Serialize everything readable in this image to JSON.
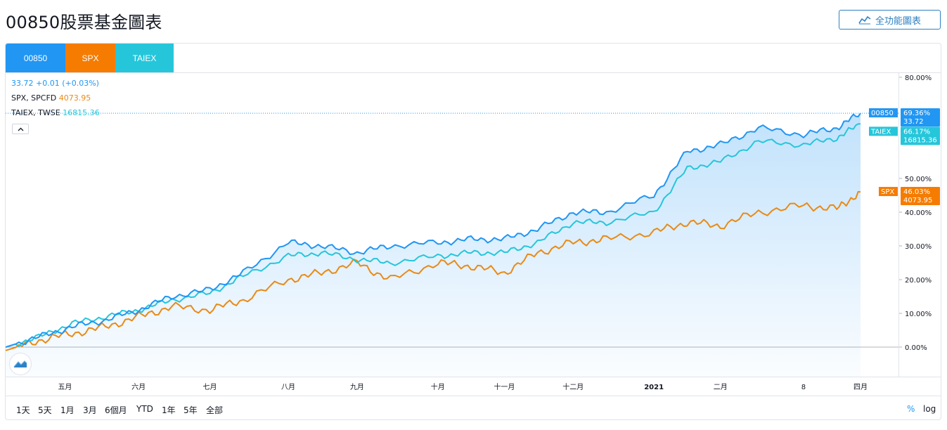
{
  "page": {
    "title": "00850股票基金圖表",
    "full_chart_button": "全功能圖表"
  },
  "tabs": [
    {
      "label": "00850",
      "color": "#2196f3"
    },
    {
      "label": "SPX",
      "color": "#f57c00"
    },
    {
      "label": "TAIEX",
      "color": "#26c6da"
    }
  ],
  "legend": {
    "main": {
      "value": "33.72",
      "change": "+0.01 (+0.03%)"
    },
    "compare": [
      {
        "label": "SPX, SPCFD",
        "value": "4073.95",
        "color": "#e98a16"
      },
      {
        "label": "TAIEX, TWSE",
        "value": "16815.36",
        "color": "#26c6da"
      }
    ],
    "collapse_icon": "chevron-up-icon"
  },
  "price_labels": [
    {
      "symbol": "00850",
      "pct": "69.36%",
      "price": "33.72",
      "color": "#2196f3"
    },
    {
      "symbol": "TAIEX",
      "pct": "66.17%",
      "price": "16815.36",
      "color": "#26c6da"
    },
    {
      "symbol": "SPX",
      "pct": "46.03%",
      "price": "4073.95",
      "color": "#f57c00"
    }
  ],
  "range_buttons": [
    "1天",
    "5天",
    "1月",
    "3月",
    "6個月",
    "YTD",
    "1年",
    "5年",
    "全部"
  ],
  "scale_buttons": {
    "percent": "%",
    "log": "log"
  },
  "chart_data": {
    "type": "line",
    "y_axis": {
      "ticks": [
        "80.00%",
        "50.00%",
        "40.00%",
        "30.00%",
        "20.00%",
        "10.00%",
        "0.00%"
      ],
      "ylim": [
        -10,
        80
      ],
      "unit": "%"
    },
    "x_ticks": [
      "五月",
      "六月",
      "七月",
      "八月",
      "九月",
      "十月",
      "十一月",
      "十二月",
      "2021",
      "二月",
      "8",
      "四月"
    ],
    "x": [
      "2020-04-06",
      "2020-04-20",
      "2020-05-04",
      "2020-05-18",
      "2020-06-01",
      "2020-06-15",
      "2020-07-01",
      "2020-07-15",
      "2020-08-03",
      "2020-08-17",
      "2020-09-01",
      "2020-09-15",
      "2020-10-05",
      "2020-10-19",
      "2020-11-02",
      "2020-11-16",
      "2020-12-01",
      "2020-12-15",
      "2021-01-04",
      "2021-01-18",
      "2021-02-01",
      "2021-02-17",
      "2021-03-08",
      "2021-03-22",
      "2021-04-01"
    ],
    "series": [
      {
        "name": "00850",
        "color": "#2196f3",
        "values": [
          0,
          3,
          6,
          8,
          11,
          15,
          17,
          22,
          31,
          30,
          28,
          30,
          31,
          32,
          32,
          35,
          40,
          40,
          45,
          58,
          60,
          65,
          63,
          65,
          69.36
        ]
      },
      {
        "name": "SPX",
        "color": "#e98a16",
        "values": [
          -1,
          2,
          4,
          6,
          9,
          12,
          11,
          14,
          20,
          22,
          25,
          20,
          25,
          24,
          22,
          28,
          31,
          32,
          34,
          37,
          36,
          40,
          42,
          41,
          46.03
        ]
      },
      {
        "name": "TAIEX",
        "color": "#26c6da",
        "values": [
          0,
          3,
          7,
          9,
          11,
          14,
          16,
          21,
          27,
          28,
          26,
          25,
          27,
          28,
          28,
          31,
          37,
          37,
          40,
          53,
          55,
          61,
          60,
          62,
          66.17
        ]
      }
    ]
  }
}
